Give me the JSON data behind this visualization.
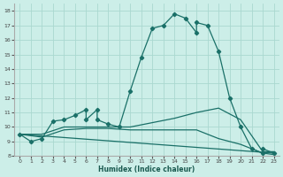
{
  "xlabel": "Humidex (Indice chaleur)",
  "bg_color": "#cceee8",
  "grid_color": "#aad8d0",
  "line_color": "#1a7068",
  "xlim": [
    -0.5,
    23.5
  ],
  "ylim": [
    8,
    18.5
  ],
  "yticks": [
    8,
    9,
    10,
    11,
    12,
    13,
    14,
    15,
    16,
    17,
    18
  ],
  "xticks": [
    0,
    1,
    2,
    3,
    4,
    5,
    6,
    7,
    8,
    9,
    10,
    11,
    12,
    13,
    14,
    15,
    16,
    17,
    18,
    19,
    20,
    21,
    22,
    23
  ],
  "line1_x": [
    0,
    1,
    2,
    3,
    4,
    5,
    6,
    6,
    7,
    7,
    8,
    9,
    10,
    11,
    12,
    13,
    14,
    15,
    16,
    16,
    17,
    18,
    19,
    20,
    21,
    22,
    22,
    23
  ],
  "line1_y": [
    9.5,
    9.0,
    9.2,
    10.4,
    10.5,
    10.8,
    11.2,
    10.5,
    11.2,
    10.5,
    10.2,
    10.0,
    12.5,
    14.8,
    16.8,
    17.0,
    17.8,
    17.5,
    16.5,
    17.2,
    17.0,
    15.2,
    12.0,
    10.0,
    8.5,
    8.2,
    8.5,
    8.2
  ],
  "line2_x": [
    0,
    2,
    4,
    6,
    8,
    10,
    12,
    14,
    16,
    18,
    20,
    22,
    23
  ],
  "line2_y": [
    9.5,
    9.5,
    10.0,
    10.0,
    10.0,
    10.0,
    10.3,
    10.6,
    11.0,
    11.3,
    10.5,
    8.3,
    8.3
  ],
  "line3_x": [
    0,
    2,
    4,
    6,
    8,
    10,
    12,
    14,
    16,
    18,
    20,
    22,
    23
  ],
  "line3_y": [
    9.5,
    9.3,
    9.8,
    9.9,
    9.9,
    9.8,
    9.8,
    9.8,
    9.8,
    9.2,
    8.8,
    8.2,
    8.1
  ],
  "line4_x": [
    0,
    23
  ],
  "line4_y": [
    9.5,
    8.2
  ],
  "marker_x": [
    0,
    1,
    2,
    3,
    4,
    5,
    6,
    7,
    8,
    9,
    10,
    11,
    12,
    13,
    14,
    15,
    16,
    17,
    18,
    19,
    20,
    21,
    22,
    23
  ],
  "marker_y": [
    9.5,
    9.0,
    9.2,
    10.4,
    10.5,
    10.8,
    11.2,
    10.8,
    10.2,
    10.0,
    12.5,
    14.8,
    16.8,
    17.0,
    17.8,
    17.5,
    16.5,
    17.2,
    15.2,
    12.0,
    10.0,
    8.5,
    8.2,
    8.2
  ]
}
